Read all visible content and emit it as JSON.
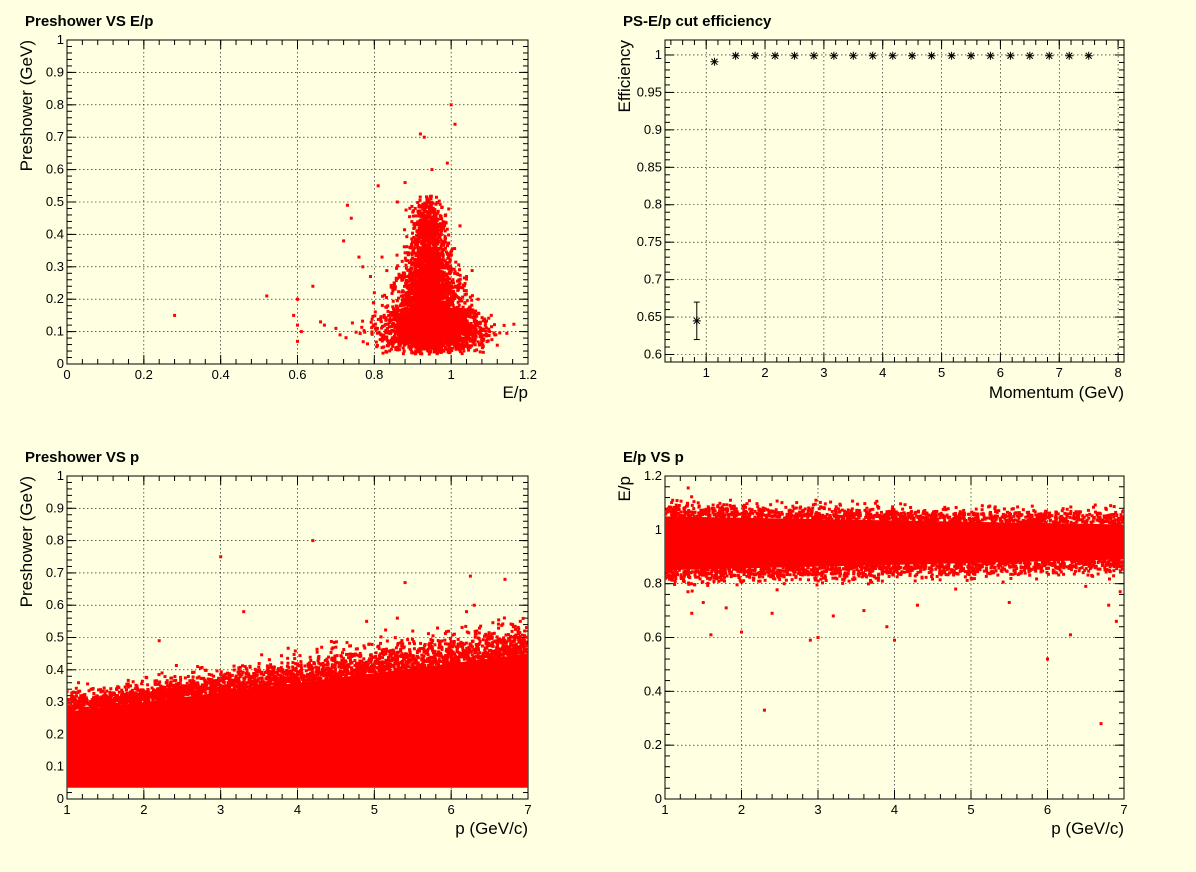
{
  "colors": {
    "background": "#ffffe1",
    "marker_red": "#ff0000",
    "marker_black": "#000000"
  },
  "chart_data": [
    {
      "type": "scatter",
      "title": "Preshower VS E/p",
      "xlabel": "E/p",
      "ylabel": "Preshower (GeV)",
      "xlim": [
        0,
        1.2
      ],
      "ylim": [
        0,
        1
      ],
      "xticks": [
        "0",
        "0.2",
        "0.4",
        "0.6",
        "0.8",
        "1",
        "1.2"
      ],
      "yticks": [
        "0",
        "0.1",
        "0.2",
        "0.3",
        "0.4",
        "0.5",
        "0.6",
        "0.7",
        "0.8",
        "0.9",
        "1"
      ],
      "grid": true,
      "cluster": {
        "center": [
          0.95,
          0.12
        ],
        "x_spread": 0.035,
        "y_range": [
          0.03,
          0.52
        ],
        "shape": "teardrop"
      },
      "points": [
        [
          0.28,
          0.15
        ],
        [
          0.52,
          0.21
        ],
        [
          0.6,
          0.2
        ],
        [
          0.59,
          0.15
        ],
        [
          0.6,
          0.12
        ],
        [
          0.6,
          0.07
        ],
        [
          0.61,
          0.1
        ],
        [
          0.64,
          0.24
        ],
        [
          0.66,
          0.13
        ],
        [
          0.67,
          0.12
        ],
        [
          0.7,
          0.11
        ],
        [
          0.72,
          0.38
        ],
        [
          0.73,
          0.49
        ],
        [
          0.74,
          0.45
        ],
        [
          0.76,
          0.33
        ],
        [
          0.77,
          0.3
        ],
        [
          0.79,
          0.27
        ],
        [
          0.8,
          0.22
        ],
        [
          0.82,
          0.33
        ],
        [
          0.81,
          0.55
        ],
        [
          0.86,
          0.5
        ],
        [
          0.88,
          0.56
        ],
        [
          0.92,
          0.71
        ],
        [
          0.93,
          0.7
        ],
        [
          0.95,
          0.6
        ],
        [
          1.0,
          0.8
        ],
        [
          1.01,
          0.74
        ],
        [
          0.99,
          0.62
        ],
        [
          1.04,
          0.27
        ],
        [
          1.07,
          0.2
        ],
        [
          1.1,
          0.1
        ]
      ]
    },
    {
      "type": "scatter",
      "title": "PS-E/p cut efficiency",
      "xlabel": "Momentum (GeV)",
      "ylabel": "Efficiency",
      "xlim": [
        0.3,
        8.1
      ],
      "ylim": [
        0.59,
        1.02
      ],
      "xticks": [
        "1",
        "2",
        "3",
        "4",
        "5",
        "6",
        "7",
        "8"
      ],
      "yticks": [
        "0.6",
        "0.65",
        "0.7",
        "0.75",
        "0.8",
        "0.85",
        "0.9",
        "0.95",
        "1"
      ],
      "grid": true,
      "x": [
        0.84,
        1.14,
        1.5,
        1.83,
        2.17,
        2.5,
        2.83,
        3.17,
        3.5,
        3.83,
        4.17,
        4.5,
        4.83,
        5.17,
        5.5,
        5.83,
        6.17,
        6.5,
        6.83,
        7.17,
        7.5
      ],
      "y": [
        0.645,
        0.991,
        0.999,
        0.999,
        0.999,
        0.999,
        0.999,
        0.999,
        0.999,
        0.999,
        0.999,
        0.999,
        0.999,
        0.999,
        0.999,
        0.999,
        0.999,
        0.999,
        0.999,
        0.999,
        0.999
      ],
      "yerr": [
        0.025,
        0.003,
        0.001,
        0.001,
        0.001,
        0.001,
        0.001,
        0.001,
        0.001,
        0.001,
        0.001,
        0.001,
        0.001,
        0.001,
        0.001,
        0.001,
        0.001,
        0.001,
        0.001,
        0.001,
        0.001
      ]
    },
    {
      "type": "scatter",
      "title": "Preshower VS p",
      "xlabel": "p (GeV/c)",
      "ylabel": "Preshower (GeV)",
      "xlim": [
        1,
        7
      ],
      "ylim": [
        0,
        1
      ],
      "xticks": [
        "1",
        "2",
        "3",
        "4",
        "5",
        "6",
        "7"
      ],
      "yticks": [
        "0",
        "0.1",
        "0.2",
        "0.3",
        "0.4",
        "0.5",
        "0.6",
        "0.7",
        "0.8",
        "0.9",
        "1"
      ],
      "grid": true,
      "band": {
        "x": [
          1,
          7
        ],
        "lower": [
          0.035,
          0.035
        ],
        "upper": [
          0.27,
          0.45
        ]
      },
      "points": [
        [
          1.1,
          0.33
        ],
        [
          1.15,
          0.36
        ],
        [
          2.2,
          0.49
        ],
        [
          3.0,
          0.75
        ],
        [
          3.3,
          0.58
        ],
        [
          4.2,
          0.8
        ],
        [
          4.9,
          0.55
        ],
        [
          5.3,
          0.56
        ],
        [
          5.4,
          0.67
        ],
        [
          5.5,
          0.52
        ],
        [
          6.2,
          0.58
        ],
        [
          6.25,
          0.69
        ],
        [
          6.3,
          0.6
        ],
        [
          6.7,
          0.68
        ],
        [
          6.8,
          0.54
        ],
        [
          6.9,
          0.55
        ],
        [
          2.7,
          0.41
        ],
        [
          4.5,
          0.47
        ]
      ]
    },
    {
      "type": "scatter",
      "title": "E/p VS p",
      "xlabel": "p (GeV/c)",
      "ylabel": "E/p",
      "xlim": [
        1,
        7
      ],
      "ylim": [
        0,
        1.2
      ],
      "xticks": [
        "1",
        "2",
        "3",
        "4",
        "5",
        "6",
        "7"
      ],
      "yticks": [
        "0",
        "0.2",
        "0.4",
        "0.6",
        "0.8",
        "1",
        "1.2"
      ],
      "grid": true,
      "band": {
        "x": [
          1,
          7
        ],
        "center": [
          0.95,
          0.955
        ],
        "halfwidth": [
          0.1,
          0.065
        ]
      },
      "points": [
        [
          1.1,
          1.11
        ],
        [
          1.3,
          0.77
        ],
        [
          1.35,
          0.69
        ],
        [
          1.5,
          0.73
        ],
        [
          1.6,
          0.61
        ],
        [
          1.8,
          0.71
        ],
        [
          2.0,
          0.62
        ],
        [
          2.3,
          0.33
        ],
        [
          2.4,
          0.69
        ],
        [
          2.9,
          0.59
        ],
        [
          3.0,
          0.6
        ],
        [
          3.2,
          0.68
        ],
        [
          3.6,
          0.7
        ],
        [
          3.9,
          0.64
        ],
        [
          4.0,
          0.59
        ],
        [
          4.3,
          0.72
        ],
        [
          4.8,
          0.78
        ],
        [
          5.5,
          0.73
        ],
        [
          6.0,
          0.52
        ],
        [
          6.3,
          0.61
        ],
        [
          6.5,
          0.79
        ],
        [
          6.7,
          0.28
        ],
        [
          6.8,
          0.72
        ],
        [
          6.9,
          0.66
        ],
        [
          6.95,
          0.77
        ]
      ]
    }
  ]
}
